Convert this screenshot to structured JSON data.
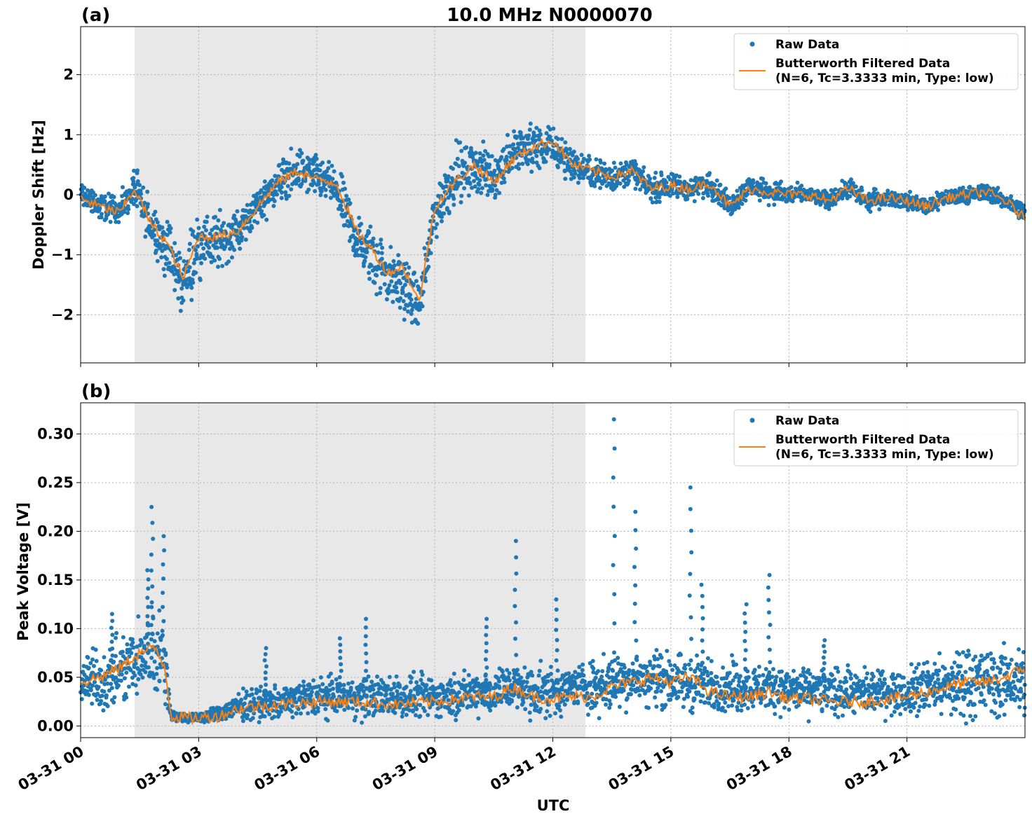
{
  "figure": {
    "title": "10.0 MHz N0000070",
    "xlabel": "UTC",
    "xticks": [
      "03-31 00",
      "03-31 03",
      "03-31 06",
      "03-31 09",
      "03-31 12",
      "03-31 15",
      "03-31 18",
      "03-31 21"
    ]
  },
  "colors": {
    "raw": "#1f77b4",
    "filtered": "#ff7f0e",
    "shade": "#e8e8e8",
    "grid": "#b0b0b0"
  },
  "chart_data": [
    {
      "type": "line",
      "panel_label": "(a)",
      "title": "10.0 MHz N0000070",
      "xlabel": "",
      "ylabel": "Doppler Shift [Hz]",
      "x_unit": "hours UTC on 03-31",
      "xlim": [
        0,
        24
      ],
      "ylim": [
        -2.8,
        2.8
      ],
      "yticks": [
        -2,
        -1,
        0,
        1,
        2
      ],
      "ytick_labels": [
        "−2",
        "−1",
        "0",
        "1",
        "2"
      ],
      "grid": true,
      "shaded_region": [
        1.37,
        12.83
      ],
      "legend": {
        "placement": "upper right",
        "entries": [
          "Raw Data",
          "Butterworth Filtered Data",
          "(N=6, Tc=3.3333 min, Type: low)"
        ]
      },
      "x": [
        0,
        0.5,
        1.0,
        1.37,
        1.8,
        2.2,
        2.6,
        3.0,
        3.5,
        4.0,
        4.5,
        5.0,
        5.5,
        6.0,
        6.5,
        7.0,
        7.5,
        7.8,
        8.2,
        8.6,
        9.0,
        9.5,
        10.0,
        10.5,
        11.0,
        11.5,
        12.0,
        12.5,
        13.0,
        13.5,
        14.0,
        14.5,
        15.0,
        15.5,
        16.0,
        16.5,
        17.0,
        17.5,
        18.0,
        18.5,
        19.0,
        19.5,
        20.0,
        20.5,
        21.0,
        21.5,
        22.0,
        22.5,
        23.0,
        23.5,
        24.0
      ],
      "series": [
        {
          "name": "Raw Data",
          "style": "markers",
          "values": [
            0.0,
            -0.2,
            -0.25,
            0.1,
            -0.5,
            -0.9,
            -1.5,
            -0.8,
            -0.8,
            -0.6,
            -0.2,
            0.2,
            0.4,
            0.3,
            0.1,
            -0.7,
            -1.1,
            -1.3,
            -1.5,
            -1.9,
            -0.3,
            0.3,
            0.5,
            0.3,
            0.7,
            0.8,
            0.8,
            0.5,
            0.35,
            0.3,
            0.4,
            0.1,
            0.15,
            0.1,
            0.2,
            -0.2,
            0.15,
            0.05,
            0.0,
            0.0,
            -0.1,
            0.1,
            -0.1,
            -0.05,
            -0.1,
            -0.2,
            -0.05,
            0.0,
            0.05,
            -0.1,
            -0.3
          ],
          "spread": [
            0.2,
            0.2,
            0.2,
            0.25,
            0.35,
            0.4,
            0.45,
            0.45,
            0.4,
            0.3,
            0.3,
            0.3,
            0.3,
            0.3,
            0.3,
            0.4,
            0.45,
            0.45,
            0.4,
            0.4,
            0.4,
            0.45,
            0.35,
            0.35,
            0.35,
            0.35,
            0.3,
            0.25,
            0.2,
            0.2,
            0.2,
            0.2,
            0.18,
            0.18,
            0.18,
            0.15,
            0.15,
            0.15,
            0.15,
            0.12,
            0.12,
            0.15,
            0.15,
            0.12,
            0.12,
            0.12,
            0.12,
            0.12,
            0.12,
            0.12,
            0.15
          ]
        },
        {
          "name": "Butterworth Filtered Data",
          "style": "line",
          "values": [
            -0.05,
            -0.2,
            -0.3,
            0.1,
            -0.5,
            -0.8,
            -1.4,
            -0.7,
            -0.7,
            -0.6,
            -0.2,
            0.2,
            0.4,
            0.25,
            0.2,
            -0.6,
            -1.0,
            -1.3,
            -1.2,
            -1.8,
            -0.2,
            0.2,
            0.5,
            0.2,
            0.6,
            0.8,
            0.9,
            0.5,
            0.4,
            0.3,
            0.4,
            0.1,
            0.15,
            0.1,
            0.2,
            -0.2,
            0.1,
            0.05,
            0.0,
            0.0,
            -0.1,
            0.1,
            -0.1,
            -0.05,
            -0.1,
            -0.2,
            -0.05,
            0.0,
            0.05,
            -0.1,
            -0.4
          ]
        }
      ]
    },
    {
      "type": "line",
      "panel_label": "(b)",
      "title": "",
      "xlabel": "UTC",
      "ylabel": "Peak Voltage [V]",
      "x_unit": "hours UTC on 03-31",
      "xlim": [
        0,
        24
      ],
      "ylim": [
        -0.012,
        0.332
      ],
      "yticks": [
        0.0,
        0.05,
        0.1,
        0.15,
        0.2,
        0.25,
        0.3
      ],
      "ytick_labels": [
        "0.00",
        "0.05",
        "0.10",
        "0.15",
        "0.20",
        "0.25",
        "0.30"
      ],
      "grid": true,
      "shaded_region": [
        1.37,
        12.83
      ],
      "legend": {
        "placement": "upper right",
        "entries": [
          "Raw Data",
          "Butterworth Filtered Data",
          "(N=6, Tc=3.3333 min, Type: low)"
        ]
      },
      "x": [
        0,
        0.5,
        1.0,
        1.5,
        1.9,
        2.15,
        2.3,
        2.8,
        3.5,
        4.0,
        5.0,
        6.0,
        7.0,
        8.0,
        9.0,
        10.0,
        10.5,
        11.0,
        11.5,
        12.0,
        12.5,
        13.0,
        13.5,
        14.0,
        14.5,
        15.0,
        15.5,
        16.0,
        16.5,
        17.0,
        17.5,
        18.0,
        18.5,
        19.0,
        19.5,
        20.0,
        20.5,
        21.0,
        21.5,
        22.0,
        22.5,
        23.0,
        23.5,
        24.0
      ],
      "series": [
        {
          "name": "Raw Data",
          "style": "markers",
          "values": [
            0.05,
            0.045,
            0.055,
            0.07,
            0.08,
            0.06,
            0.01,
            0.008,
            0.012,
            0.02,
            0.025,
            0.03,
            0.03,
            0.03,
            0.03,
            0.035,
            0.035,
            0.04,
            0.035,
            0.035,
            0.04,
            0.04,
            0.045,
            0.05,
            0.05,
            0.045,
            0.045,
            0.04,
            0.04,
            0.04,
            0.04,
            0.035,
            0.035,
            0.035,
            0.035,
            0.035,
            0.035,
            0.035,
            0.04,
            0.04,
            0.045,
            0.045,
            0.045,
            0.05
          ],
          "spread": [
            0.025,
            0.025,
            0.03,
            0.035,
            0.045,
            0.03,
            0.004,
            0.004,
            0.006,
            0.012,
            0.015,
            0.018,
            0.018,
            0.018,
            0.018,
            0.02,
            0.02,
            0.022,
            0.02,
            0.02,
            0.022,
            0.022,
            0.025,
            0.025,
            0.025,
            0.025,
            0.025,
            0.022,
            0.022,
            0.022,
            0.022,
            0.02,
            0.02,
            0.02,
            0.02,
            0.02,
            0.02,
            0.022,
            0.025,
            0.028,
            0.03,
            0.03,
            0.03,
            0.032
          ]
        },
        {
          "name": "Butterworth Filtered Data",
          "style": "line",
          "values": [
            0.045,
            0.05,
            0.06,
            0.075,
            0.08,
            0.06,
            0.01,
            0.008,
            0.01,
            0.018,
            0.022,
            0.025,
            0.025,
            0.022,
            0.025,
            0.03,
            0.03,
            0.04,
            0.03,
            0.028,
            0.03,
            0.03,
            0.04,
            0.045,
            0.05,
            0.045,
            0.05,
            0.035,
            0.03,
            0.03,
            0.035,
            0.028,
            0.028,
            0.025,
            0.025,
            0.025,
            0.028,
            0.03,
            0.035,
            0.04,
            0.045,
            0.045,
            0.05,
            0.06
          ]
        }
      ],
      "spikes": [
        {
          "x": 0.8,
          "y": 0.115
        },
        {
          "x": 1.7,
          "y": 0.16
        },
        {
          "x": 1.82,
          "y": 0.225
        },
        {
          "x": 2.1,
          "y": 0.195
        },
        {
          "x": 4.7,
          "y": 0.08
        },
        {
          "x": 6.6,
          "y": 0.09
        },
        {
          "x": 7.25,
          "y": 0.11
        },
        {
          "x": 10.3,
          "y": 0.11
        },
        {
          "x": 11.05,
          "y": 0.19
        },
        {
          "x": 12.1,
          "y": 0.13
        },
        {
          "x": 13.55,
          "y": 0.315
        },
        {
          "x": 14.1,
          "y": 0.22
        },
        {
          "x": 15.5,
          "y": 0.245
        },
        {
          "x": 15.8,
          "y": 0.145
        },
        {
          "x": 16.9,
          "y": 0.125
        },
        {
          "x": 17.5,
          "y": 0.155
        },
        {
          "x": 18.9,
          "y": 0.088
        }
      ]
    }
  ]
}
